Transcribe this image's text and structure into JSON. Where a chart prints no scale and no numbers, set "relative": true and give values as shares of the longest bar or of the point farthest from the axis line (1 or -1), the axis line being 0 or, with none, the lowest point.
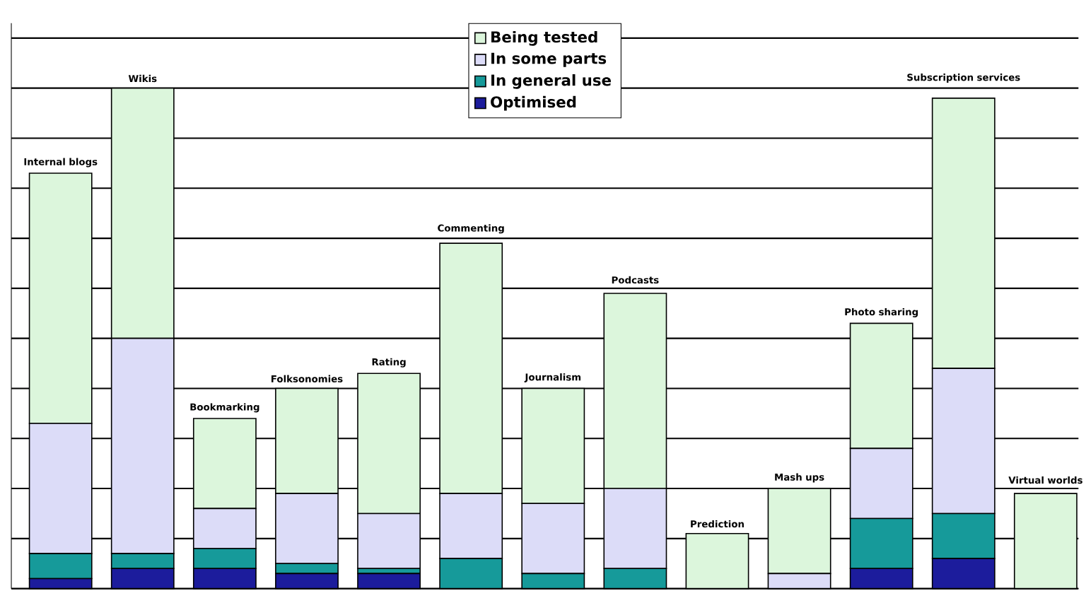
{
  "chart_data": {
    "type": "bar",
    "stacked": true,
    "relative": true,
    "grid": "y",
    "legend": "top",
    "categories": [
      "Internal blogs",
      "Wikis",
      "Bookmarking",
      "Folksonomies",
      "Rating",
      "Commenting",
      "Journalism",
      "Podcasts",
      "Prediction",
      "Mash ups",
      "Photo sharing",
      "Subscription services",
      "Virtual worlds"
    ],
    "series": [
      {
        "name": "Optimised",
        "color": "#1c1c9c",
        "values": [
          0.02,
          0.04,
          0.04,
          0.03,
          0.03,
          0,
          0,
          0,
          0,
          0,
          0.04,
          0.06,
          0
        ]
      },
      {
        "name": "In general use",
        "color": "#169a9a",
        "values": [
          0.05,
          0.03,
          0.04,
          0.02,
          0.01,
          0.06,
          0.03,
          0.04,
          0,
          0,
          0.1,
          0.09,
          0
        ]
      },
      {
        "name": "In some parts",
        "color": "#dcdcf8",
        "values": [
          0.26,
          0.43,
          0.08,
          0.14,
          0.11,
          0.13,
          0.14,
          0.16,
          0,
          0.03,
          0.14,
          0.29,
          0
        ]
      },
      {
        "name": "Being tested",
        "color": "#dcf6dc",
        "values": [
          0.5,
          0.5,
          0.18,
          0.21,
          0.28,
          0.5,
          0.23,
          0.39,
          0.11,
          0.17,
          0.25,
          0.54,
          0.19
        ]
      }
    ]
  }
}
